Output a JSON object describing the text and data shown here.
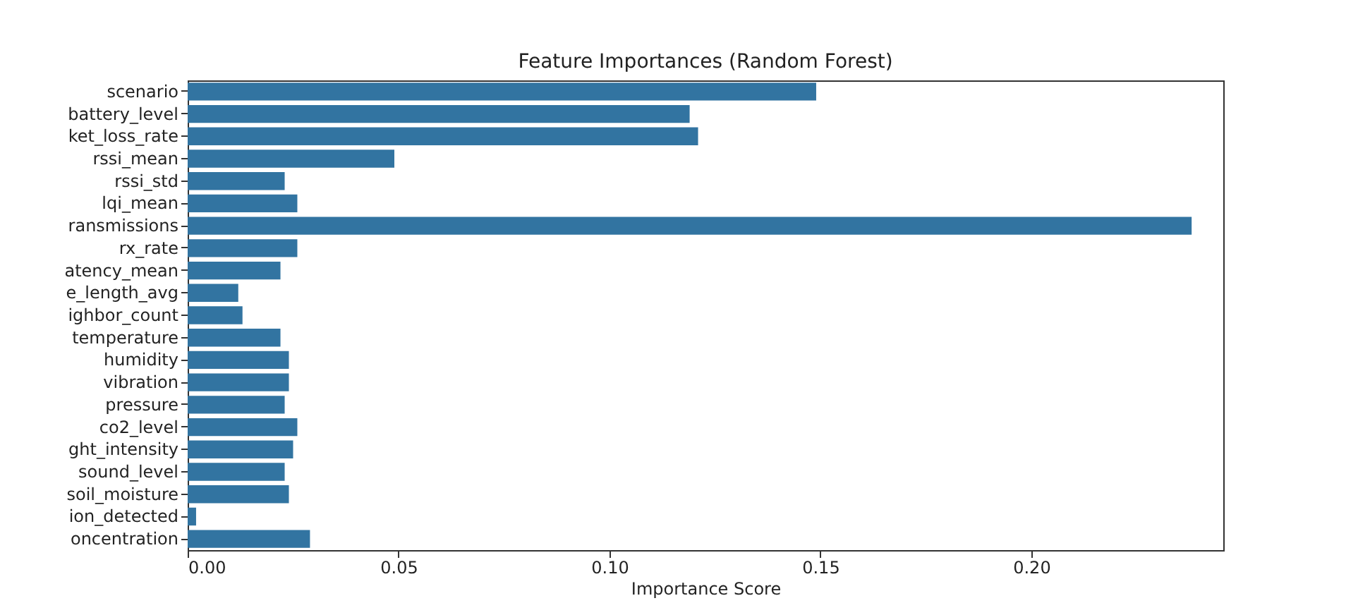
{
  "chart_data": {
    "type": "bar",
    "orientation": "horizontal",
    "title": "Feature Importances (Random Forest)",
    "xlabel": "Importance Score",
    "categories": [
      "scenario",
      "battery_level",
      "ket_loss_rate",
      "rssi_mean",
      "rssi_std",
      "lqi_mean",
      "ransmissions",
      "rx_rate",
      "atency_mean",
      "e_length_avg",
      "ighbor_count",
      "temperature",
      "humidity",
      "vibration",
      "pressure",
      "co2_level",
      "ght_intensity",
      "sound_level",
      "soil_moisture",
      "ion_detected",
      "oncentration"
    ],
    "values": [
      0.149,
      0.119,
      0.121,
      0.049,
      0.023,
      0.026,
      0.238,
      0.026,
      0.022,
      0.012,
      0.013,
      0.022,
      0.024,
      0.024,
      0.023,
      0.026,
      0.025,
      0.023,
      0.024,
      0.002,
      0.029
    ],
    "color": "#3274a1",
    "xlim": [
      0,
      0.2455
    ],
    "xticks": [
      {
        "value": 0,
        "label": "0.00"
      },
      {
        "value": 0.05,
        "label": "0.05"
      },
      {
        "value": 0.1,
        "label": "0.10"
      },
      {
        "value": 0.15,
        "label": "0.15"
      },
      {
        "value": 0.2,
        "label": "0.20"
      }
    ],
    "grid": false
  }
}
